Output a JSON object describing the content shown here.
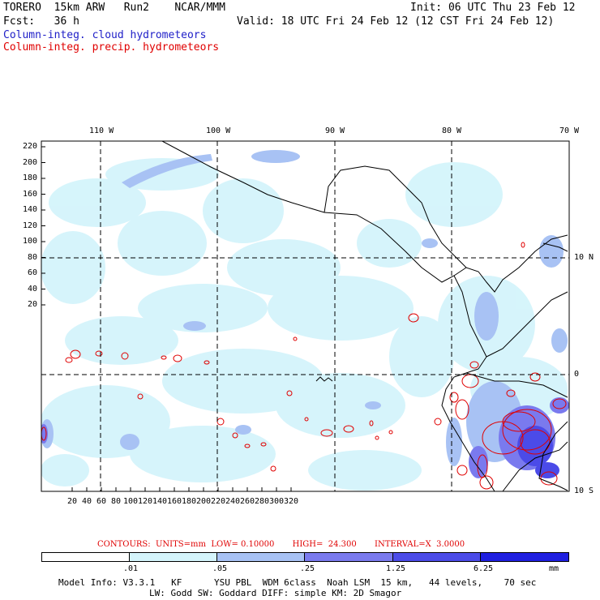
{
  "header": {
    "model_line": "TORERO  15km ARW   Run2    NCAR/MMM",
    "init": "Init: 06 UTC Thu 23 Feb 12",
    "fcst": "Fcst:   36 h",
    "valid": "Valid: 18 UTC Fri 24 Feb 12 (12 CST Fri 24 Feb 12)",
    "legend_cloud": "Column-integ. cloud hydrometeors",
    "legend_precip": "Column-integ. precip. hydrometeors"
  },
  "map": {
    "top_lon_labels": [
      "110 W",
      "100 W",
      "90 W",
      "80 W",
      "70 W"
    ],
    "right_lat_labels": [
      "10 N",
      "0",
      "10 S"
    ],
    "y_ticks": [
      "220",
      "200",
      "180",
      "160",
      "140",
      "120",
      "100",
      "80",
      "60",
      "40",
      "20"
    ],
    "x_ticks": [
      "20",
      "40",
      "60",
      "80",
      "100",
      "120",
      "140",
      "160",
      "180",
      "200",
      "220",
      "240",
      "260",
      "280",
      "300",
      "320"
    ]
  },
  "footer": {
    "contours": "CONTOURS:  UNITS=mm  LOW= 0.10000       HIGH=  24.300       INTERVAL=X  3.0000",
    "colorbar_labels": [
      ".01",
      ".05",
      ".25",
      "1.25",
      "6.25",
      "mm"
    ],
    "colorbar_colors": [
      "#ffffff",
      "#d4f4fb",
      "#a8c2f4",
      "#7a7aee",
      "#4b4be8",
      "#1f1fe0"
    ],
    "model_info": "Model Info: V3.3.1   KF      YSU PBL  WDM 6class  Noah LSM  15 km,   44 levels,    70 sec",
    "model_info2": "LW: Godd SW: Goddard DIFF: simple KM: 2D Smagor"
  }
}
